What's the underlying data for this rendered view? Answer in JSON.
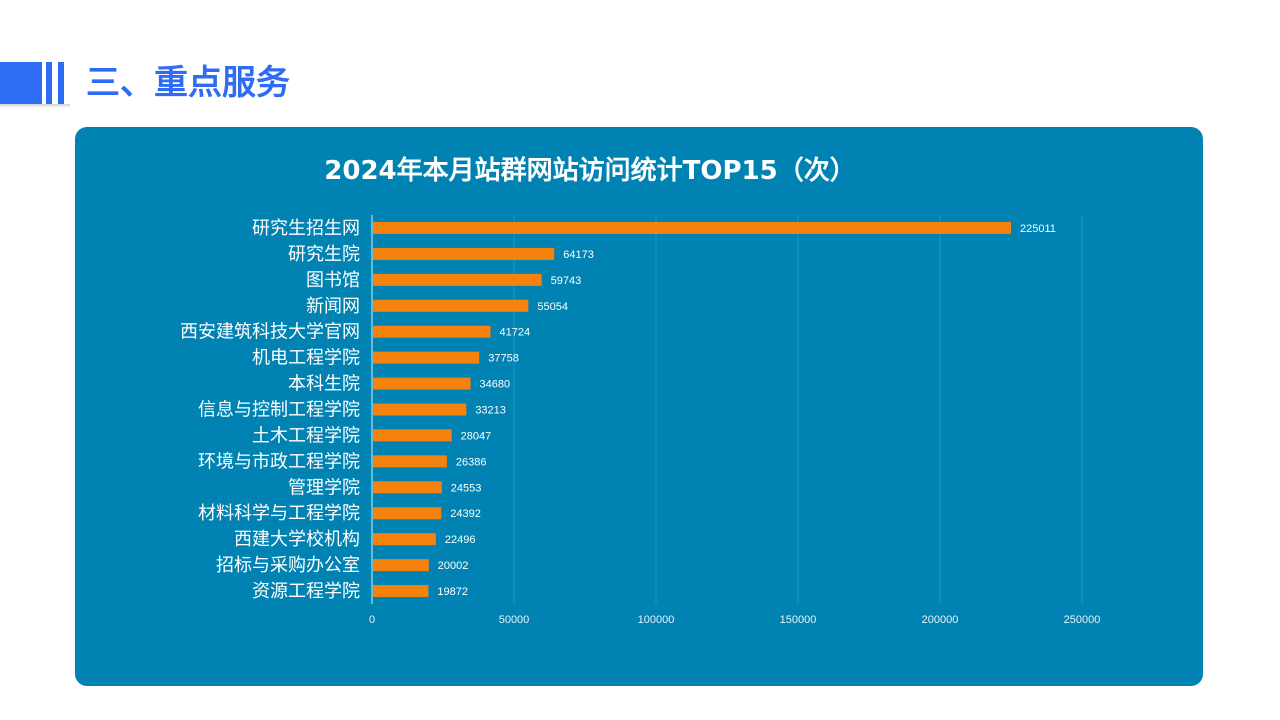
{
  "header": {
    "title": "三、重点服务",
    "accent_color": "#2f6cf6"
  },
  "panel": {
    "background": "#0083b3"
  },
  "chart_data": {
    "type": "bar",
    "orientation": "horizontal",
    "title": "2024年本月站群网站访问统计TOP15（次）",
    "categories": [
      "研究生招生网",
      "研究生院",
      "图书馆",
      "新闻网",
      "西安建筑科技大学官网",
      "机电工程学院",
      "本科生院",
      "信息与控制工程学院",
      "土木工程学院",
      "环境与市政工程学院",
      "管理学院",
      "材料科学与工程学院",
      "西建大学校机构",
      "招标与采购办公室",
      "资源工程学院"
    ],
    "values": [
      225011,
      64173,
      59743,
      55054,
      41724,
      37758,
      34680,
      33213,
      28047,
      26386,
      24553,
      24392,
      22496,
      20002,
      19872
    ],
    "xlim": [
      0,
      250000
    ],
    "xticks": [
      0,
      50000,
      100000,
      150000,
      200000,
      250000
    ],
    "grid": true,
    "bar_color": "#f5820f"
  }
}
